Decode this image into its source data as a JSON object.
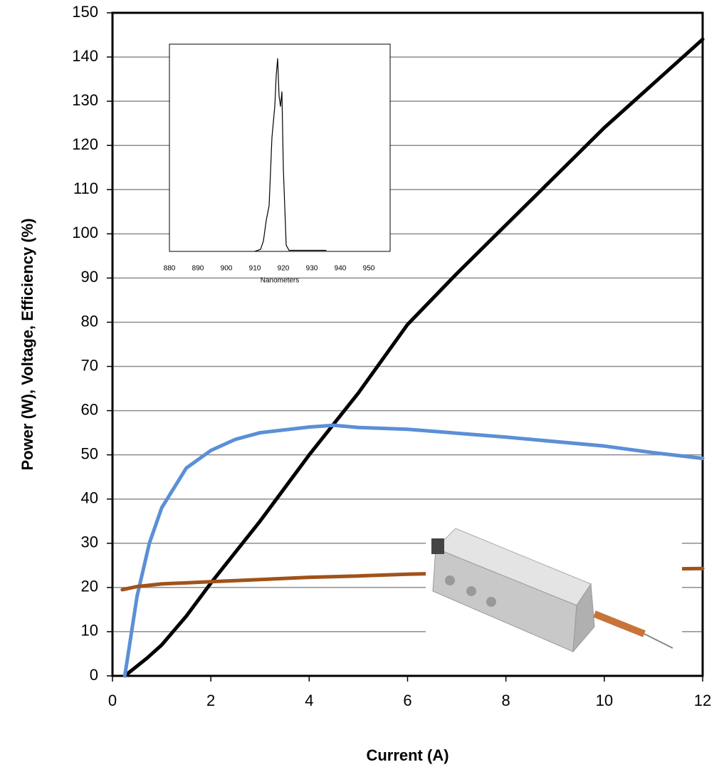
{
  "chart_data": [
    {
      "type": "line",
      "xlabel": "Current (A)",
      "ylabel": "Power (W), Voltage, Efficiency (%)",
      "xlim": [
        0,
        12
      ],
      "xticks": [
        0,
        2,
        4,
        6,
        8,
        10,
        12
      ],
      "ylim": [
        0,
        150
      ],
      "yticks": [
        0,
        10,
        20,
        30,
        40,
        50,
        60,
        70,
        80,
        90,
        100,
        110,
        120,
        130,
        140,
        150
      ],
      "grid": true,
      "series": [
        {
          "color": "#000000",
          "x": [
            0.25,
            0.7,
            1,
            1.5,
            2,
            3,
            4,
            4.5,
            5,
            6,
            7,
            8,
            9,
            10,
            11,
            12
          ],
          "values": [
            0,
            4,
            7,
            13.5,
            21,
            35,
            50,
            57,
            64,
            79.5,
            91,
            102,
            113,
            124,
            134,
            144
          ]
        },
        {
          "color": "#5b8fd6",
          "x": [
            0.25,
            0.5,
            0.75,
            1,
            1.5,
            2,
            2.5,
            3,
            4,
            4.5,
            5,
            6,
            8,
            10,
            11,
            12
          ],
          "values": [
            0,
            18,
            30,
            38,
            47,
            51,
            53.5,
            55,
            56.3,
            56.7,
            56.2,
            55.8,
            54,
            52,
            50.5,
            49.2
          ]
        },
        {
          "color": "#a0521a",
          "x": [
            0.2,
            0.5,
            1,
            2,
            3,
            4,
            5,
            6,
            8,
            10,
            12
          ],
          "values": [
            19.5,
            20.2,
            20.8,
            21.3,
            21.8,
            22.3,
            22.6,
            23,
            23.5,
            24,
            24.3
          ]
        }
      ]
    },
    {
      "type": "line",
      "xlabel": "Nanometers",
      "xlim": [
        880,
        957.5
      ],
      "xticks": [
        880,
        890,
        900,
        910,
        920,
        930,
        940,
        950
      ],
      "ylim": [
        0,
        100
      ],
      "grid": false,
      "series": [
        {
          "color": "#000000",
          "x": [
            910,
            912,
            913,
            914,
            915,
            916,
            917,
            917.5,
            918,
            918.5,
            919,
            919.5,
            920,
            921,
            922,
            935
          ],
          "values": [
            0,
            1,
            5,
            15,
            22,
            55,
            70,
            85,
            93,
            75,
            70,
            77,
            40,
            3,
            0.5,
            0.5
          ]
        }
      ]
    }
  ]
}
